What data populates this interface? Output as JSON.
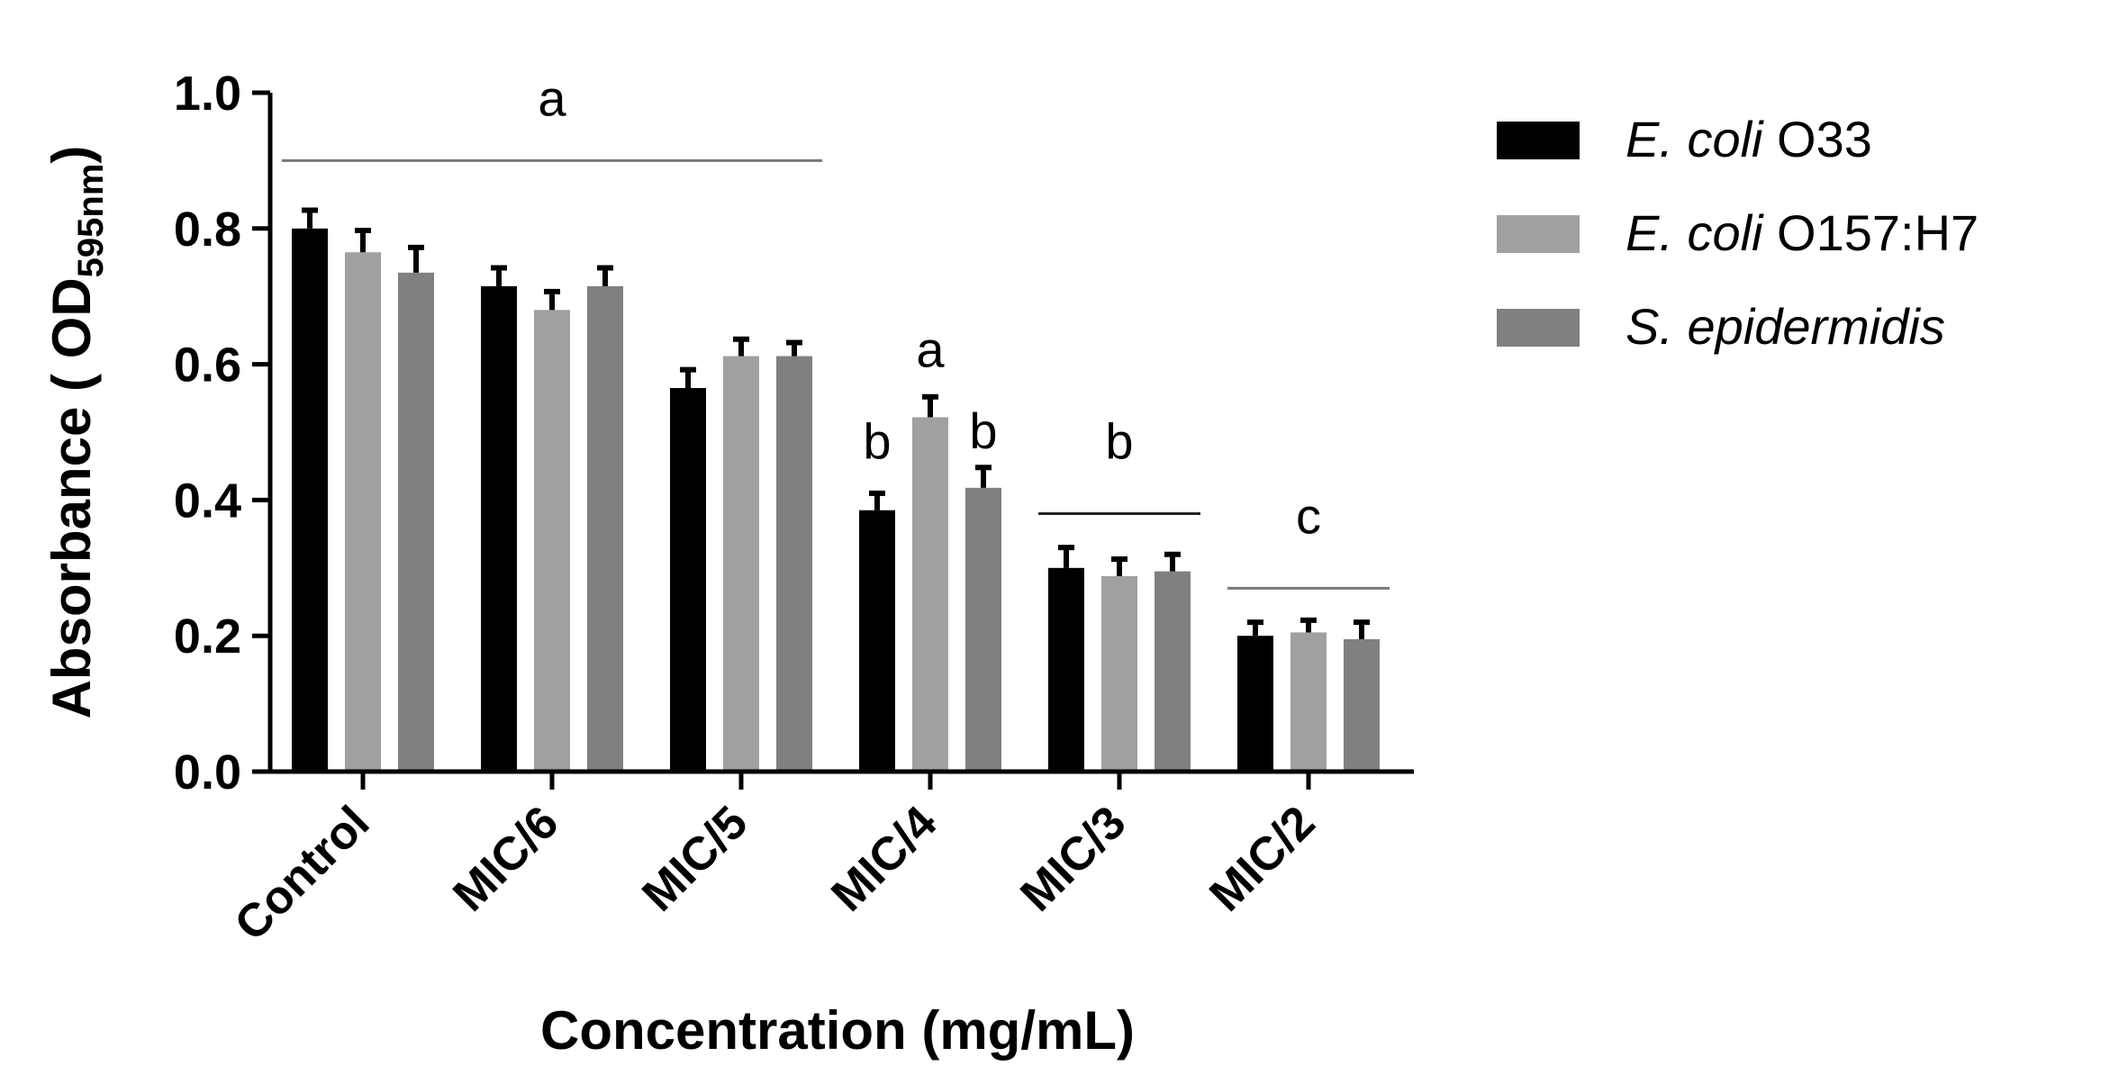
{
  "chart_data": {
    "type": "bar",
    "title": "",
    "xlabel": "Concentration (mg/mL)",
    "ylabel": {
      "prefix": "Absorbance ( OD",
      "subscript": "595nm",
      "suffix": ")"
    },
    "ylim": [
      0,
      1.0
    ],
    "yticks": [
      "0.0",
      "0.2",
      "0.4",
      "0.6",
      "0.8",
      "1.0"
    ],
    "categories": [
      "Control",
      "MIC/6",
      "MIC/5",
      "MIC/4",
      "MIC/3",
      "MIC/2"
    ],
    "series": [
      {
        "name_italic": "E. coli",
        "name_rest": " O33",
        "color": "#000000",
        "values": [
          0.8,
          0.715,
          0.565,
          0.385,
          0.3,
          0.2
        ],
        "errors": [
          0.027,
          0.027,
          0.027,
          0.025,
          0.03,
          0.02
        ]
      },
      {
        "name_italic": "E. coli",
        "name_rest": " O157:H7",
        "color": "#a0a0a0",
        "values": [
          0.765,
          0.68,
          0.612,
          0.522,
          0.288,
          0.205
        ],
        "errors": [
          0.032,
          0.027,
          0.025,
          0.03,
          0.025,
          0.018
        ]
      },
      {
        "name_italic": "S. epidermidis",
        "name_rest": "",
        "color": "#808080",
        "values": [
          0.735,
          0.715,
          0.612,
          0.418,
          0.295,
          0.195
        ],
        "errors": [
          0.037,
          0.027,
          0.02,
          0.03,
          0.025,
          0.025
        ]
      }
    ],
    "significance": [
      {
        "letter": "a",
        "value": 0.99,
        "line": {
          "from_category": 0,
          "to_category": 2,
          "value": 0.9,
          "color": "#777777"
        }
      },
      {
        "letter": "b",
        "value": 0.485,
        "category": 3,
        "series": 0
      },
      {
        "letter": "a",
        "value": 0.62,
        "category": 3,
        "series": 1
      },
      {
        "letter": "b",
        "value": 0.5,
        "category": 3,
        "series": 2
      },
      {
        "letter": "b",
        "value": 0.485,
        "line": {
          "from_category": 4,
          "to_category": 4,
          "value": 0.38,
          "color": "#222222"
        }
      },
      {
        "letter": "c",
        "value": 0.375,
        "line": {
          "from_category": 5,
          "to_category": 5,
          "value": 0.27,
          "color": "#777777"
        }
      }
    ],
    "legend_position": "right"
  }
}
